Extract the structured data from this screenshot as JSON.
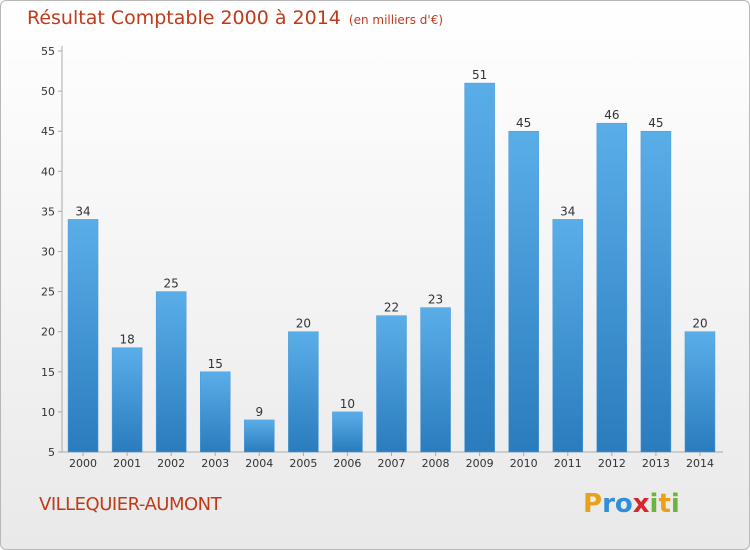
{
  "header": {
    "title": "Résultat Comptable 2000 à 2014",
    "subtitle": "(en milliers d'€)"
  },
  "footer": {
    "commune": "VILLEQUIER-AUMONT",
    "logo_letters": [
      "P",
      "r",
      "o",
      "x",
      "i",
      "t",
      "i"
    ],
    "logo_colors": [
      "#e8a21a",
      "#2f8fd8",
      "#2f8fd8",
      "#d9262a",
      "#6db33f",
      "#e8a21a",
      "#6db33f"
    ]
  },
  "chart_data": {
    "type": "bar",
    "title": "Résultat Comptable 2000 à 2014",
    "subtitle": "(en milliers d'€)",
    "categories": [
      "2000",
      "2001",
      "2002",
      "2003",
      "2004",
      "2005",
      "2006",
      "2007",
      "2008",
      "2009",
      "2010",
      "2011",
      "2012",
      "2013",
      "2014"
    ],
    "values": [
      34,
      18,
      25,
      15,
      9,
      20,
      10,
      22,
      23,
      51,
      45,
      34,
      46,
      45,
      20
    ],
    "ylim": [
      5,
      55
    ],
    "yticks": [
      5,
      10,
      15,
      20,
      25,
      30,
      35,
      40,
      45,
      50,
      55
    ],
    "grid": false,
    "bar_color_top": "#5aaee8",
    "bar_color_bottom": "#2a7cbd"
  }
}
